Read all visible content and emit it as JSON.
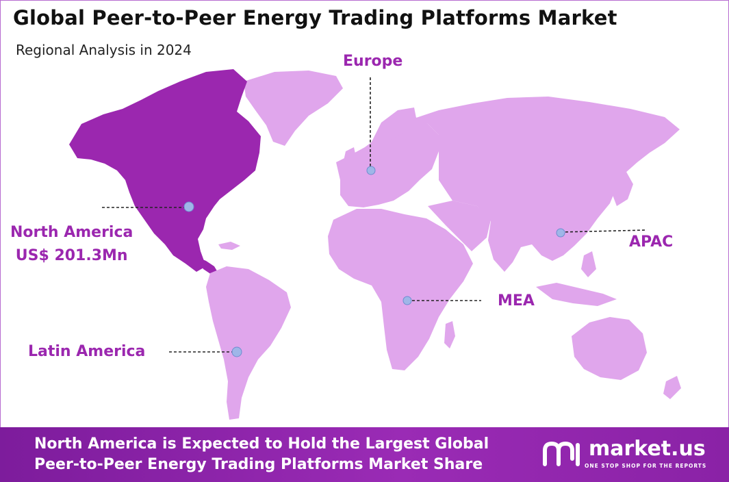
{
  "title": "Global Peer-to-Peer Energy Trading Platforms Market",
  "subtitle": "Regional Analysis in 2024",
  "regions": {
    "europe": {
      "name": "Europe"
    },
    "north_america": {
      "name": "North America",
      "value": "US$ 201.3Mn"
    },
    "apac": {
      "name": "APAC"
    },
    "mea": {
      "name": "MEA"
    },
    "latin_america": {
      "name": "Latin America"
    }
  },
  "footer": {
    "line1": "North America is Expected to Hold the Largest Global",
    "line2": "Peer-to-Peer Energy Trading Platforms Market Share"
  },
  "brand": {
    "name": "market.us",
    "tagline": "ONE STOP SHOP FOR THE REPORTS"
  },
  "colors": {
    "highlight_region": "#9b27af",
    "other_regions": "#e0a6ec",
    "accent_text": "#9b27af",
    "footer_bg": "#8a22a6",
    "marker": "#9fb6e8"
  }
}
